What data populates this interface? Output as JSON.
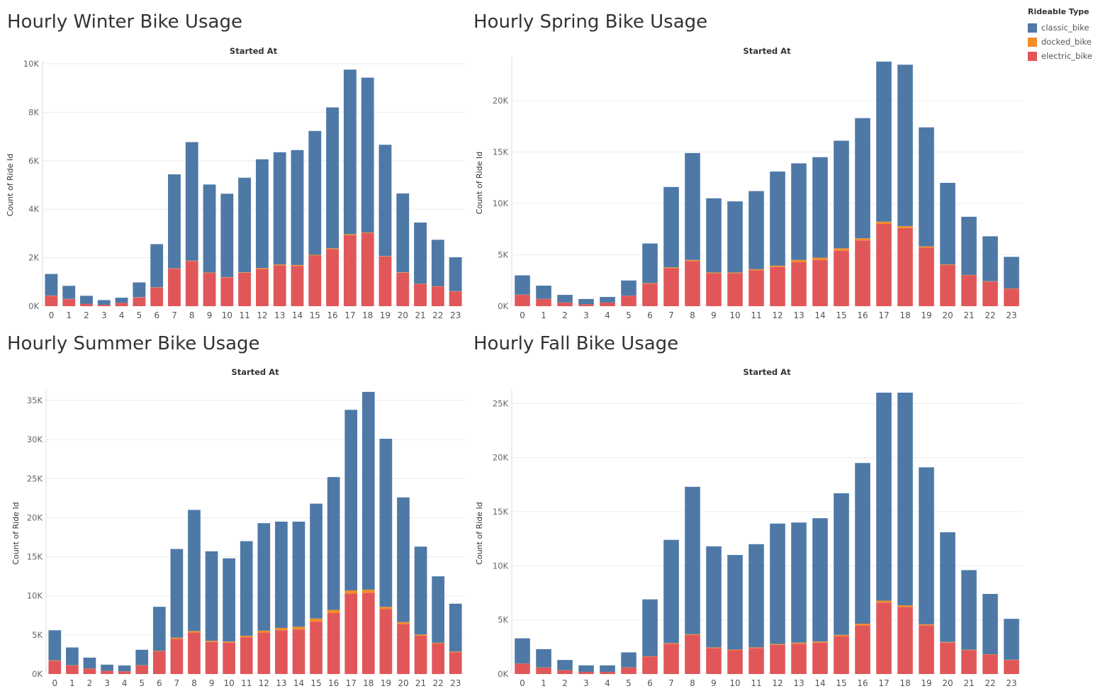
{
  "legend": {
    "title": "Rideable Type",
    "items": [
      {
        "label": "classic_bike",
        "color": "#4e79a7"
      },
      {
        "label": "docked_bike",
        "color": "#f28e2b"
      },
      {
        "label": "electric_bike",
        "color": "#e15759"
      }
    ]
  },
  "chart_data": [
    {
      "type": "bar",
      "stacked": true,
      "title": "Hourly Winter Bike Usage",
      "xlabel": "Started At",
      "ylabel": "Count of Ride Id",
      "categories": [
        "0",
        "1",
        "2",
        "3",
        "4",
        "5",
        "6",
        "7",
        "8",
        "9",
        "10",
        "11",
        "12",
        "13",
        "14",
        "15",
        "16",
        "17",
        "18",
        "19",
        "20",
        "21",
        "22",
        "23"
      ],
      "ylim": [
        0,
        10000
      ],
      "yticks": [
        0,
        2000,
        4000,
        6000,
        8000,
        10000
      ],
      "ytick_labels": [
        "0K",
        "2K",
        "4K",
        "6K",
        "8K",
        "10K"
      ],
      "grid": true,
      "series": [
        {
          "name": "electric_bike",
          "color": "#e15759",
          "values": [
            430,
            290,
            100,
            60,
            140,
            360,
            770,
            1540,
            1860,
            1370,
            1180,
            1380,
            1530,
            1680,
            1660,
            2090,
            2360,
            2930,
            3010,
            2050,
            1380,
            920,
            810,
            610
          ]
        },
        {
          "name": "docked_bike",
          "color": "#f28e2b",
          "values": [
            10,
            10,
            0,
            0,
            0,
            10,
            10,
            20,
            20,
            20,
            20,
            20,
            40,
            40,
            40,
            30,
            30,
            40,
            30,
            20,
            20,
            10,
            10,
            10
          ]
        },
        {
          "name": "classic_bike",
          "color": "#4e79a7",
          "values": [
            890,
            540,
            330,
            190,
            210,
            610,
            1780,
            3880,
            4890,
            3630,
            3440,
            3900,
            4490,
            4630,
            4740,
            5110,
            5810,
            6790,
            6390,
            4590,
            3250,
            2520,
            1920,
            1400
          ]
        }
      ]
    },
    {
      "type": "bar",
      "stacked": true,
      "title": "Hourly Spring Bike Usage",
      "xlabel": "Started At",
      "ylabel": "Count of Ride Id",
      "categories": [
        "0",
        "1",
        "2",
        "3",
        "4",
        "5",
        "6",
        "7",
        "8",
        "9",
        "10",
        "11",
        "12",
        "13",
        "14",
        "15",
        "16",
        "17",
        "18",
        "19",
        "20",
        "21",
        "22",
        "23"
      ],
      "ylim": [
        0,
        24000
      ],
      "yticks": [
        0,
        5000,
        10000,
        15000,
        20000
      ],
      "ytick_labels": [
        "0K",
        "5K",
        "10K",
        "15K",
        "20K"
      ],
      "grid": true,
      "series": [
        {
          "name": "electric_bike",
          "color": "#e15759",
          "values": [
            1100,
            700,
            350,
            200,
            350,
            1000,
            2200,
            3700,
            4400,
            3200,
            3200,
            3500,
            3800,
            4300,
            4500,
            5400,
            6400,
            8000,
            7600,
            5700,
            4000,
            3000,
            2400,
            1700
          ]
        },
        {
          "name": "docked_bike",
          "color": "#f28e2b",
          "values": [
            20,
            10,
            10,
            0,
            0,
            20,
            50,
            80,
            100,
            80,
            80,
            100,
            140,
            200,
            220,
            230,
            200,
            220,
            200,
            120,
            60,
            40,
            30,
            20
          ]
        },
        {
          "name": "classic_bike",
          "color": "#4e79a7",
          "values": [
            1880,
            1290,
            740,
            500,
            550,
            1480,
            3850,
            7820,
            10400,
            7220,
            6920,
            7600,
            9160,
            9400,
            9780,
            10470,
            11700,
            15580,
            15700,
            11580,
            7940,
            5660,
            4370,
            3080
          ]
        }
      ]
    },
    {
      "type": "bar",
      "stacked": true,
      "title": "Hourly Summer Bike Usage",
      "xlabel": "Started At",
      "ylabel": "Count of Ride Id",
      "categories": [
        "0",
        "1",
        "2",
        "3",
        "4",
        "5",
        "6",
        "7",
        "8",
        "9",
        "10",
        "11",
        "12",
        "13",
        "14",
        "15",
        "16",
        "17",
        "18",
        "19",
        "20",
        "21",
        "22",
        "23"
      ],
      "ylim": [
        0,
        36000
      ],
      "yticks": [
        0,
        5000,
        10000,
        15000,
        20000,
        25000,
        30000,
        35000
      ],
      "ytick_labels": [
        "0K",
        "5K",
        "10K",
        "15K",
        "20K",
        "25K",
        "30K",
        "35K"
      ],
      "grid": true,
      "series": [
        {
          "name": "electric_bike",
          "color": "#e15759",
          "values": [
            1700,
            1100,
            700,
            400,
            350,
            1100,
            2900,
            4500,
            5300,
            4100,
            4000,
            4700,
            5300,
            5600,
            5700,
            6700,
            7800,
            10300,
            10400,
            8300,
            6400,
            4900,
            3900,
            2800
          ]
        },
        {
          "name": "docked_bike",
          "color": "#f28e2b",
          "values": [
            50,
            30,
            20,
            10,
            10,
            30,
            60,
            150,
            200,
            150,
            150,
            200,
            250,
            300,
            350,
            400,
            400,
            400,
            400,
            300,
            250,
            150,
            100,
            80
          ]
        },
        {
          "name": "classic_bike",
          "color": "#4e79a7",
          "values": [
            3850,
            2270,
            1380,
            790,
            740,
            1970,
            5640,
            11350,
            15500,
            11450,
            10650,
            12100,
            13750,
            13600,
            13450,
            14700,
            17000,
            23100,
            25300,
            21500,
            15950,
            11250,
            8500,
            6120
          ]
        }
      ]
    },
    {
      "type": "bar",
      "stacked": true,
      "title": "Hourly Fall Bike Usage",
      "xlabel": "Started At",
      "ylabel": "Count of Ride Id",
      "categories": [
        "0",
        "1",
        "2",
        "3",
        "4",
        "5",
        "6",
        "7",
        "8",
        "9",
        "10",
        "11",
        "12",
        "13",
        "14",
        "15",
        "16",
        "17",
        "18",
        "19",
        "20",
        "21",
        "22",
        "23"
      ],
      "ylim": [
        0,
        26000
      ],
      "yticks": [
        0,
        5000,
        10000,
        15000,
        20000,
        25000
      ],
      "ytick_labels": [
        "0K",
        "5K",
        "10K",
        "15K",
        "20K",
        "25K"
      ],
      "grid": true,
      "series": [
        {
          "name": "electric_bike",
          "color": "#e15759",
          "values": [
            950,
            600,
            350,
            200,
            200,
            600,
            1600,
            2800,
            3600,
            2400,
            2200,
            2400,
            2700,
            2800,
            2900,
            3500,
            4500,
            6600,
            6200,
            4500,
            2900,
            2200,
            1800,
            1300
          ]
        },
        {
          "name": "docked_bike",
          "color": "#f28e2b",
          "values": [
            20,
            10,
            10,
            0,
            0,
            20,
            40,
            60,
            80,
            60,
            60,
            60,
            80,
            100,
            100,
            120,
            150,
            180,
            150,
            100,
            60,
            40,
            30,
            20
          ]
        },
        {
          "name": "classic_bike",
          "color": "#4e79a7",
          "values": [
            2330,
            1690,
            940,
            600,
            600,
            1380,
            5260,
            9540,
            13620,
            9340,
            8740,
            9540,
            11120,
            11100,
            11400,
            13080,
            14850,
            19220,
            19650,
            14500,
            10140,
            7360,
            5570,
            3780
          ]
        }
      ]
    }
  ]
}
